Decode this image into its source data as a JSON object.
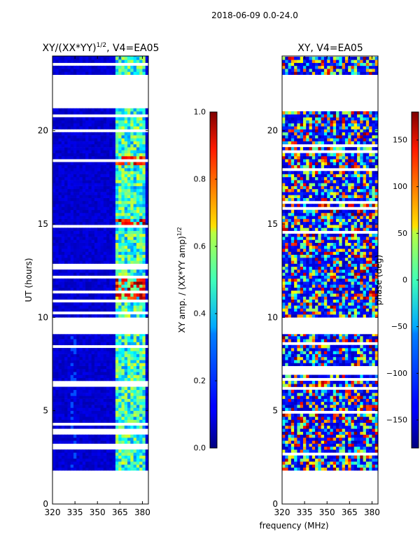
{
  "figure": {
    "suptitle": "2018-06-09 0.0-24.0",
    "shared_xlabel": "frequency (MHz)"
  },
  "chart_data": [
    {
      "type": "heatmap",
      "title": "XY/(XX*YY)",
      "title_sup": "1/2",
      "title_suffix": ", V4=EA05",
      "xlabel": "",
      "ylabel": "UT (hours)",
      "xlim": [
        320,
        384
      ],
      "ylim": [
        0,
        24
      ],
      "xticks": [
        320,
        335,
        350,
        365,
        380
      ],
      "yticks": [
        0,
        5,
        10,
        15,
        20
      ],
      "grid": false,
      "colorbar": {
        "label_prefix": "XY amp. / (XX*YY amp)",
        "label_sup": "1/2",
        "range": [
          0.0,
          1.0
        ],
        "ticks": [
          0.0,
          0.2,
          0.4,
          0.6,
          0.8,
          1.0
        ],
        "tick_labels": [
          "0.0",
          "0.2",
          "0.4",
          "0.6",
          "0.8",
          "1.0"
        ],
        "colormap": "jet"
      },
      "data_time_spans_hours": [
        [
          1.8,
          9.1
        ],
        [
          10.0,
          21.2
        ],
        [
          23.0,
          24.0
        ]
      ],
      "flagged_gaps_hours": [
        [
          0.0,
          1.8
        ],
        [
          9.1,
          10.0
        ],
        [
          21.2,
          23.0
        ]
      ],
      "description": "Mostly low amplitude (~0.05) across band; elevated amplitude (0.3-0.5) near 365-380 MHz; high values (~0.9) near 364-378 MHz at 11-12 h and 15 h and 18.3 h."
    },
    {
      "type": "heatmap",
      "title": "XY, V4=EA05",
      "xlabel": "",
      "ylabel": "",
      "xlim": [
        320,
        384
      ],
      "ylim": [
        0,
        24
      ],
      "xticks": [
        320,
        335,
        350,
        365,
        380
      ],
      "yticks": [
        0,
        5,
        10,
        15,
        20
      ],
      "grid": false,
      "colorbar": {
        "label": "phase (deg)",
        "range": [
          -180,
          180
        ],
        "ticks": [
          150,
          100,
          50,
          0,
          -50,
          -100,
          -150
        ],
        "tick_labels": [
          "150",
          "100",
          "50",
          "0",
          "−50",
          "−100",
          "−150"
        ],
        "colormap": "jet"
      },
      "data_time_spans_hours": [
        [
          1.8,
          9.1
        ],
        [
          10.0,
          21.2
        ],
        [
          23.0,
          24.0
        ]
      ],
      "flagged_gaps_hours": [
        [
          0.0,
          1.8
        ],
        [
          9.1,
          10.0
        ],
        [
          21.2,
          23.0
        ]
      ],
      "description": "Noisy phase across all values; dominated by low phase (blue, ~-150 deg) with scattered high phase patches."
    }
  ]
}
